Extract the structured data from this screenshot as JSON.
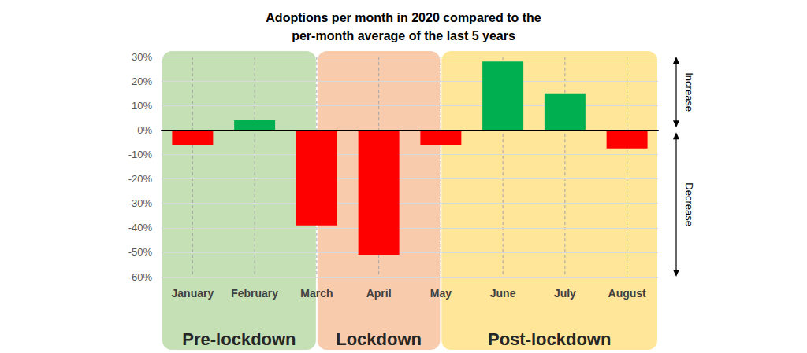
{
  "chart_data": {
    "type": "bar",
    "title": "Adoptions per month in 2020 compared to the\nper-month average of the last 5 years",
    "categories": [
      "January",
      "February",
      "March",
      "April",
      "May",
      "June",
      "July",
      "August"
    ],
    "values": [
      -6,
      4,
      -39,
      -51,
      -6,
      28,
      15,
      -7.5
    ],
    "colors": [
      "#ff0000",
      "#00b050",
      "#ff0000",
      "#ff0000",
      "#ff0000",
      "#00b050",
      "#00b050",
      "#ff0000"
    ],
    "ylim": [
      -60,
      30
    ],
    "yticks": [
      {
        "value": -60,
        "label": "-60%"
      },
      {
        "value": -50,
        "label": "-50%"
      },
      {
        "value": -40,
        "label": "-40%"
      },
      {
        "value": -30,
        "label": "-30%"
      },
      {
        "value": -20,
        "label": "-20%"
      },
      {
        "value": -10,
        "label": "-10%"
      },
      {
        "value": 0,
        "label": "0%"
      },
      {
        "value": 10,
        "label": "10%"
      },
      {
        "value": 20,
        "label": "20%"
      },
      {
        "value": 30,
        "label": "30%"
      }
    ],
    "grid": true,
    "data_labels": false,
    "regions": [
      {
        "label": "Pre-lockdown",
        "from": "January",
        "to": "March",
        "color": "#c5e0b4"
      },
      {
        "label": "Lockdown",
        "from": "March",
        "to": "May",
        "color": "#f8cbad"
      },
      {
        "label": "Post-lockdown",
        "from": "May",
        "to": "August",
        "color": "#ffe699"
      }
    ],
    "annotations": [
      {
        "text": "Increase",
        "from": 0,
        "to": 30
      },
      {
        "text": "Decrease",
        "from": 0,
        "to": -60
      }
    ]
  }
}
